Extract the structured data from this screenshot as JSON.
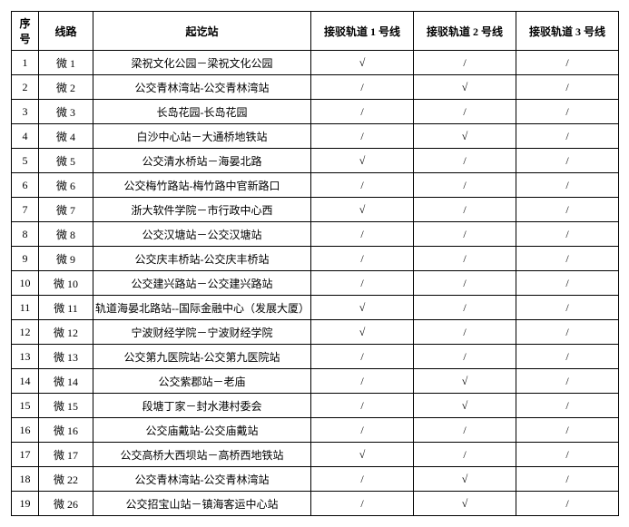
{
  "headers": {
    "idx": "序\n号",
    "line": "线路",
    "station": "起讫站",
    "c1": "接驳轨道 1 号线",
    "c2": "接驳轨道 2 号线",
    "c3": "接驳轨道 3 号线"
  },
  "rows": [
    {
      "idx": "1",
      "line": "微 1",
      "station": "梁祝文化公园－梁祝文化公园",
      "c1": "√",
      "c2": "/",
      "c3": "/"
    },
    {
      "idx": "2",
      "line": "微 2",
      "station": "公交青林湾站-公交青林湾站",
      "c1": "/",
      "c2": "√",
      "c3": "/"
    },
    {
      "idx": "3",
      "line": "微 3",
      "station": "长岛花园-长岛花园",
      "c1": "/",
      "c2": "/",
      "c3": "/"
    },
    {
      "idx": "4",
      "line": "微 4",
      "station": "白沙中心站－大通桥地铁站",
      "c1": "/",
      "c2": "√",
      "c3": "/"
    },
    {
      "idx": "5",
      "line": "微 5",
      "station": "公交清水桥站－海晏北路",
      "c1": "√",
      "c2": "/",
      "c3": "/"
    },
    {
      "idx": "6",
      "line": "微 6",
      "station": "公交梅竹路站-梅竹路中官新路口",
      "c1": "/",
      "c2": "/",
      "c3": "/"
    },
    {
      "idx": "7",
      "line": "微 7",
      "station": "浙大软件学院－市行政中心西",
      "c1": "√",
      "c2": "/",
      "c3": "/"
    },
    {
      "idx": "8",
      "line": "微 8",
      "station": "公交汉塘站－公交汉塘站",
      "c1": "/",
      "c2": "/",
      "c3": "/"
    },
    {
      "idx": "9",
      "line": "微 9",
      "station": "公交庆丰桥站-公交庆丰桥站",
      "c1": "/",
      "c2": "/",
      "c3": "/"
    },
    {
      "idx": "10",
      "line": "微 10",
      "station": "公交建兴路站－公交建兴路站",
      "c1": "/",
      "c2": "/",
      "c3": "/"
    },
    {
      "idx": "11",
      "line": "微 11",
      "station": "轨道海晏北路站--国际金融中心（发展大厦）",
      "c1": "√",
      "c2": "/",
      "c3": "/"
    },
    {
      "idx": "12",
      "line": "微 12",
      "station": "宁波财经学院－宁波财经学院",
      "c1": "√",
      "c2": "/",
      "c3": "/"
    },
    {
      "idx": "13",
      "line": "微 13",
      "station": "公交第九医院站-公交第九医院站",
      "c1": "/",
      "c2": "/",
      "c3": "/"
    },
    {
      "idx": "14",
      "line": "微 14",
      "station": "公交紫郡站－老庙",
      "c1": "/",
      "c2": "√",
      "c3": "/"
    },
    {
      "idx": "15",
      "line": "微 15",
      "station": "段塘丁家－封水港村委会",
      "c1": "/",
      "c2": "√",
      "c3": "/"
    },
    {
      "idx": "16",
      "line": "微 16",
      "station": "公交庙戴站-公交庙戴站",
      "c1": "/",
      "c2": "/",
      "c3": "/"
    },
    {
      "idx": "17",
      "line": "微 17",
      "station": "公交高桥大西坝站－高桥西地铁站",
      "c1": "√",
      "c2": "/",
      "c3": "/"
    },
    {
      "idx": "18",
      "line": "微 22",
      "station": "公交青林湾站-公交青林湾站",
      "c1": "/",
      "c2": "√",
      "c3": "/"
    },
    {
      "idx": "19",
      "line": "微 26",
      "station": "公交招宝山站－镇海客运中心站",
      "c1": "/",
      "c2": "√",
      "c3": "/"
    }
  ]
}
